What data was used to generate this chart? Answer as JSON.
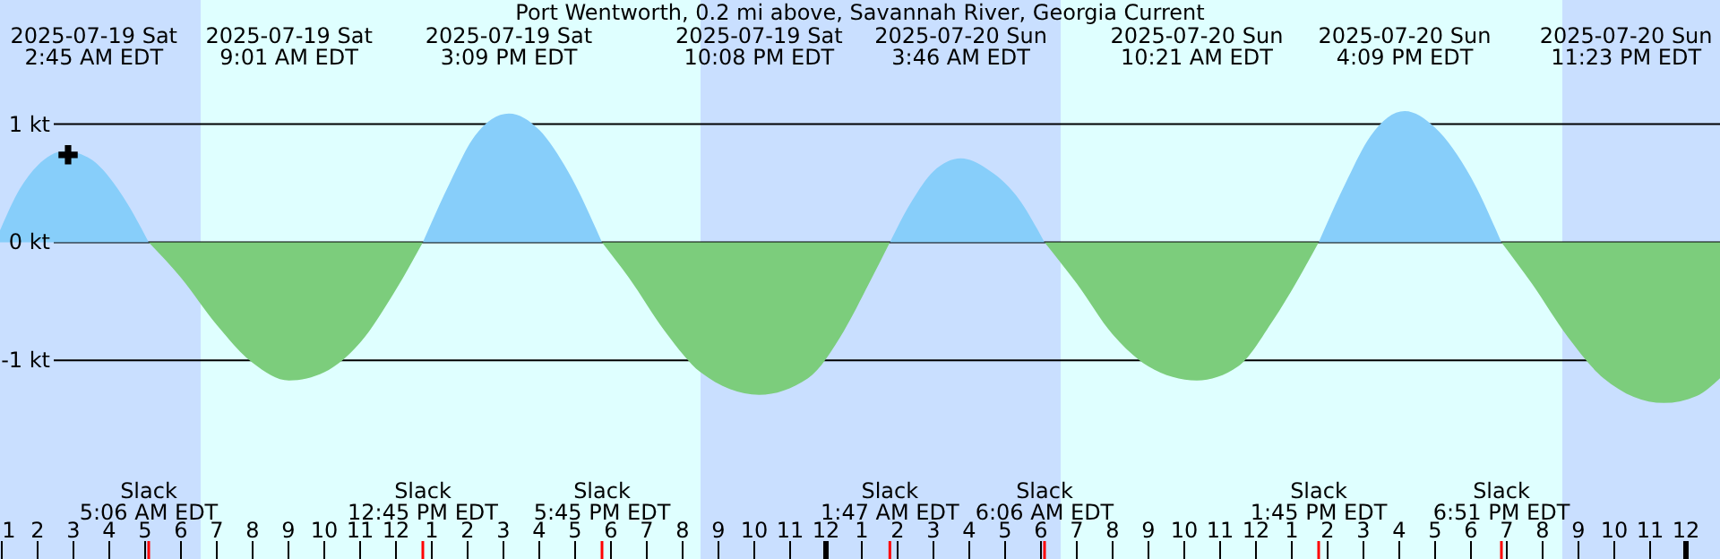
{
  "chart_data": {
    "type": "area",
    "title": "Port Wentworth, 0.2 mi above, Savannah River, Georgia Current",
    "x": [
      "2025-07-19T00:57",
      "2025-07-19T01:30",
      "2025-07-19T02:00",
      "2025-07-19T02:45",
      "2025-07-19T03:30",
      "2025-07-19T04:00",
      "2025-07-19T04:30",
      "2025-07-19T05:06",
      "2025-07-19T06:00",
      "2025-07-19T07:00",
      "2025-07-19T08:00",
      "2025-07-19T09:01",
      "2025-07-19T10:00",
      "2025-07-19T11:00",
      "2025-07-19T12:00",
      "2025-07-19T12:45",
      "2025-07-19T13:30",
      "2025-07-19T14:12",
      "2025-07-19T15:09",
      "2025-07-19T16:00",
      "2025-07-19T16:48",
      "2025-07-19T17:45",
      "2025-07-19T18:30",
      "2025-07-19T19:30",
      "2025-07-19T20:30",
      "2025-07-19T22:08",
      "2025-07-19T23:30",
      "2025-07-20T00:30",
      "2025-07-20T01:12",
      "2025-07-20T01:47",
      "2025-07-20T02:24",
      "2025-07-20T03:00",
      "2025-07-20T03:46",
      "2025-07-20T04:30",
      "2025-07-20T05:18",
      "2025-07-20T06:06",
      "2025-07-20T07:00",
      "2025-07-20T08:00",
      "2025-07-20T09:00",
      "2025-07-20T10:21",
      "2025-07-20T11:30",
      "2025-07-20T12:30",
      "2025-07-20T13:45",
      "2025-07-20T14:30",
      "2025-07-20T15:12",
      "2025-07-20T16:09",
      "2025-07-20T17:00",
      "2025-07-20T18:00",
      "2025-07-20T18:51",
      "2025-07-20T19:42",
      "2025-07-20T20:42",
      "2025-07-20T21:42",
      "2025-07-20T23:23",
      "2025-07-21T00:18",
      "2025-07-21T00:57"
    ],
    "series": [
      {
        "color": "#87cefa",
        "values": [
          0.1,
          0.45,
          0.65,
          0.77,
          0.7,
          0.55,
          0.33,
          0,
          null,
          null,
          null,
          null,
          null,
          null,
          null,
          0,
          0.5,
          0.9,
          1.09,
          0.95,
          0.6,
          0,
          null,
          null,
          null,
          null,
          null,
          null,
          null,
          0,
          0.35,
          0.6,
          0.71,
          0.62,
          0.4,
          0,
          null,
          null,
          null,
          null,
          null,
          null,
          0,
          0.5,
          0.9,
          1.11,
          0.97,
          0.55,
          0,
          null,
          null,
          null,
          null,
          null,
          null
        ]
      },
      {
        "color": "#7ccd7c",
        "values": [
          null,
          null,
          null,
          null,
          null,
          null,
          null,
          0,
          -0.3,
          -0.7,
          -1.02,
          -1.17,
          -1.1,
          -0.85,
          -0.4,
          0,
          null,
          null,
          null,
          null,
          null,
          0,
          -0.3,
          -0.75,
          -1.1,
          -1.29,
          -1.15,
          -0.75,
          -0.35,
          0,
          null,
          null,
          null,
          null,
          null,
          0,
          -0.35,
          -0.78,
          -1.05,
          -1.17,
          -1.05,
          -0.65,
          0,
          null,
          null,
          null,
          null,
          null,
          0,
          -0.35,
          -0.8,
          -1.15,
          -1.36,
          -1.3,
          -1.15
        ]
      },
      {
        "type": "scatter",
        "color": "#000000",
        "marker": "cross",
        "x": [
          "2025-07-19T02:51"
        ],
        "values": [
          0.74
        ]
      }
    ],
    "xlim": [
      "2025-07-19T00:57",
      "2025-07-21T00:57"
    ],
    "xticks": [
      {
        "value": "2025-07-19T01:00",
        "label": "1"
      },
      {
        "value": "2025-07-19T02:00",
        "label": "2"
      },
      {
        "value": "2025-07-19T03:00",
        "label": "3"
      },
      {
        "value": "2025-07-19T04:00",
        "label": "4"
      },
      {
        "value": "2025-07-19T05:00",
        "label": "5"
      },
      {
        "value": "2025-07-19T06:00",
        "label": "6"
      },
      {
        "value": "2025-07-19T07:00",
        "label": "7"
      },
      {
        "value": "2025-07-19T08:00",
        "label": "8"
      },
      {
        "value": "2025-07-19T09:00",
        "label": "9"
      },
      {
        "value": "2025-07-19T10:00",
        "label": "10"
      },
      {
        "value": "2025-07-19T11:00",
        "label": "11"
      },
      {
        "value": "2025-07-19T12:00",
        "label": "12"
      },
      {
        "value": "2025-07-19T13:00",
        "label": "1"
      },
      {
        "value": "2025-07-19T14:00",
        "label": "2"
      },
      {
        "value": "2025-07-19T15:00",
        "label": "3"
      },
      {
        "value": "2025-07-19T16:00",
        "label": "4"
      },
      {
        "value": "2025-07-19T17:00",
        "label": "5"
      },
      {
        "value": "2025-07-19T18:00",
        "label": "6"
      },
      {
        "value": "2025-07-19T19:00",
        "label": "7"
      },
      {
        "value": "2025-07-19T20:00",
        "label": "8"
      },
      {
        "value": "2025-07-19T21:00",
        "label": "9"
      },
      {
        "value": "2025-07-19T22:00",
        "label": "10"
      },
      {
        "value": "2025-07-19T23:00",
        "label": "11"
      },
      {
        "value": "2025-07-20T00:00",
        "label": "12"
      },
      {
        "value": "2025-07-20T01:00",
        "label": "1"
      },
      {
        "value": "2025-07-20T02:00",
        "label": "2"
      },
      {
        "value": "2025-07-20T03:00",
        "label": "3"
      },
      {
        "value": "2025-07-20T04:00",
        "label": "4"
      },
      {
        "value": "2025-07-20T05:00",
        "label": "5"
      },
      {
        "value": "2025-07-20T06:00",
        "label": "6"
      },
      {
        "value": "2025-07-20T07:00",
        "label": "7"
      },
      {
        "value": "2025-07-20T08:00",
        "label": "8"
      },
      {
        "value": "2025-07-20T09:00",
        "label": "9"
      },
      {
        "value": "2025-07-20T10:00",
        "label": "10"
      },
      {
        "value": "2025-07-20T11:00",
        "label": "11"
      },
      {
        "value": "2025-07-20T12:00",
        "label": "12"
      },
      {
        "value": "2025-07-20T13:00",
        "label": "1"
      },
      {
        "value": "2025-07-20T14:00",
        "label": "2"
      },
      {
        "value": "2025-07-20T15:00",
        "label": "3"
      },
      {
        "value": "2025-07-20T16:00",
        "label": "4"
      },
      {
        "value": "2025-07-20T17:00",
        "label": "5"
      },
      {
        "value": "2025-07-20T18:00",
        "label": "6"
      },
      {
        "value": "2025-07-20T19:00",
        "label": "7"
      },
      {
        "value": "2025-07-20T20:00",
        "label": "8"
      },
      {
        "value": "2025-07-20T21:00",
        "label": "9"
      },
      {
        "value": "2025-07-20T22:00",
        "label": "10"
      },
      {
        "value": "2025-07-20T23:00",
        "label": "11"
      },
      {
        "value": "2025-07-21T00:00",
        "label": "12"
      }
    ],
    "ylim": [
      -2.68,
      2.05
    ],
    "yticks": [
      {
        "value": 1,
        "label": "1 kt"
      },
      {
        "value": 0,
        "label": "0 kt"
      },
      {
        "value": -1,
        "label": "-1 kt"
      }
    ],
    "grid": "y",
    "bands": [
      {
        "axis": "x",
        "from": "2025-07-19T00:57",
        "to": "2025-07-19T06:33",
        "color": "#c9dfff"
      },
      {
        "axis": "x",
        "from": "2025-07-19T20:30",
        "to": "2025-07-20T06:33",
        "color": "#c9dfff"
      },
      {
        "axis": "x",
        "from": "2025-07-20T20:33",
        "to": "2025-07-21T00:57",
        "color": "#c9dfff"
      }
    ],
    "annotations": [
      "2025-07-19 Sat\n2:45 AM EDT",
      "2025-07-19 Sat\n9:01 AM EDT",
      "2025-07-19 Sat\n3:09 PM EDT",
      "2025-07-19 Sat\n10:08 PM EDT",
      "2025-07-20 Sun\n3:46 AM EDT",
      "2025-07-20 Sun\n10:21 AM EDT",
      "2025-07-20 Sun\n4:09 PM EDT",
      "2025-07-20 Sun\n11:23 PM EDT",
      "Slack\n5:06 AM EDT",
      "Slack\n12:45 PM EDT",
      "Slack\n5:45 PM EDT",
      "Slack\n1:47 AM EDT",
      "Slack\n6:06 AM EDT",
      "Slack\n1:45 PM EDT",
      "Slack\n6:51 PM EDT"
    ]
  }
}
